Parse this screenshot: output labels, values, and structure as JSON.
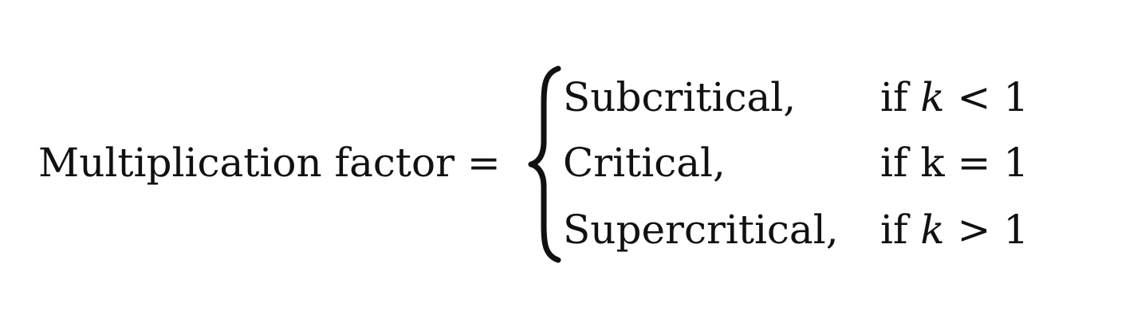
{
  "equation": {
    "lhs": "Multiplication factor =",
    "cases": [
      {
        "label": "Subcritical,",
        "if_word": "if",
        "variable": "k",
        "relation": "< 1"
      },
      {
        "label": "Critical,",
        "if_word": "if",
        "variable": "k",
        "relation": "= 1"
      },
      {
        "label": "Supercritical,",
        "if_word": "if",
        "variable": "k",
        "relation": "> 1"
      }
    ]
  }
}
